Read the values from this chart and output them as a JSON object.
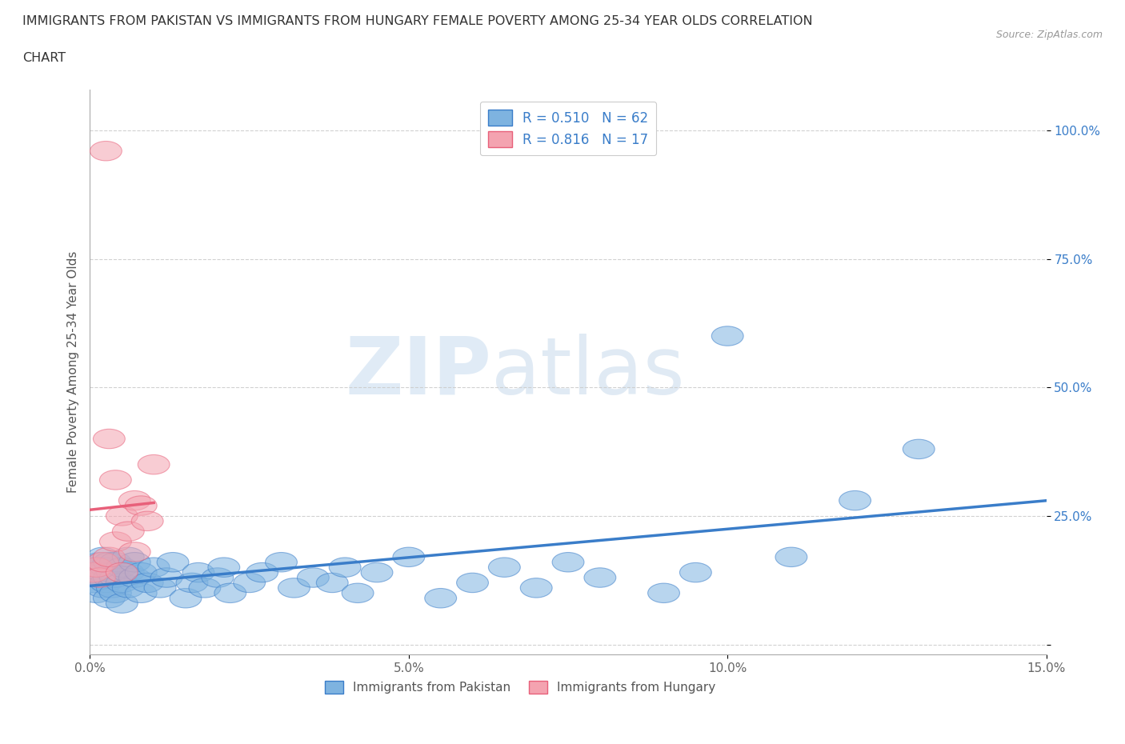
{
  "title_line1": "IMMIGRANTS FROM PAKISTAN VS IMMIGRANTS FROM HUNGARY FEMALE POVERTY AMONG 25-34 YEAR OLDS CORRELATION",
  "title_line2": "CHART",
  "source_text": "Source: ZipAtlas.com",
  "ylabel": "Female Poverty Among 25-34 Year Olds",
  "xlim": [
    0.0,
    0.15
  ],
  "ylim": [
    -0.02,
    1.08
  ],
  "yticks": [
    0.0,
    0.25,
    0.5,
    0.75,
    1.0
  ],
  "ytick_labels": [
    "",
    "25.0%",
    "50.0%",
    "75.0%",
    "100.0%"
  ],
  "xticks": [
    0.0,
    0.05,
    0.1,
    0.15
  ],
  "xtick_labels": [
    "0.0%",
    "5.0%",
    "10.0%",
    "15.0%"
  ],
  "legend_r1": "R = 0.510",
  "legend_n1": "N = 62",
  "legend_r2": "R = 0.816",
  "legend_n2": "N = 17",
  "color_pakistan": "#7EB3E0",
  "color_hungary": "#F4A3B0",
  "color_line_pakistan": "#3A7DC9",
  "color_line_hungary": "#E8607A",
  "watermark_zip": "ZIP",
  "watermark_atlas": "atlas",
  "pakistan_x": [
    0.0005,
    0.001,
    0.001,
    0.0015,
    0.0015,
    0.002,
    0.002,
    0.002,
    0.0025,
    0.0025,
    0.003,
    0.003,
    0.003,
    0.0035,
    0.0035,
    0.004,
    0.004,
    0.004,
    0.005,
    0.005,
    0.005,
    0.006,
    0.006,
    0.006,
    0.007,
    0.007,
    0.008,
    0.008,
    0.009,
    0.01,
    0.011,
    0.012,
    0.013,
    0.015,
    0.016,
    0.017,
    0.018,
    0.02,
    0.021,
    0.022,
    0.025,
    0.027,
    0.03,
    0.032,
    0.035,
    0.038,
    0.04,
    0.042,
    0.045,
    0.05,
    0.055,
    0.06,
    0.065,
    0.07,
    0.075,
    0.08,
    0.09,
    0.095,
    0.1,
    0.11,
    0.12,
    0.13
  ],
  "pakistan_y": [
    0.12,
    0.15,
    0.1,
    0.13,
    0.16,
    0.11,
    0.14,
    0.17,
    0.12,
    0.15,
    0.09,
    0.13,
    0.16,
    0.11,
    0.14,
    0.1,
    0.13,
    0.16,
    0.12,
    0.15,
    0.08,
    0.11,
    0.14,
    0.17,
    0.13,
    0.16,
    0.1,
    0.14,
    0.12,
    0.15,
    0.11,
    0.13,
    0.16,
    0.09,
    0.12,
    0.14,
    0.11,
    0.13,
    0.15,
    0.1,
    0.12,
    0.14,
    0.16,
    0.11,
    0.13,
    0.12,
    0.15,
    0.1,
    0.14,
    0.17,
    0.09,
    0.12,
    0.15,
    0.11,
    0.16,
    0.13,
    0.1,
    0.14,
    0.6,
    0.17,
    0.28,
    0.38
  ],
  "hungary_x": [
    0.0005,
    0.001,
    0.0015,
    0.002,
    0.0025,
    0.003,
    0.003,
    0.004,
    0.004,
    0.005,
    0.005,
    0.006,
    0.007,
    0.007,
    0.008,
    0.009,
    0.01
  ],
  "hungary_y": [
    0.14,
    0.15,
    0.13,
    0.16,
    0.96,
    0.4,
    0.17,
    0.32,
    0.2,
    0.25,
    0.14,
    0.22,
    0.28,
    0.18,
    0.27,
    0.24,
    0.35
  ]
}
